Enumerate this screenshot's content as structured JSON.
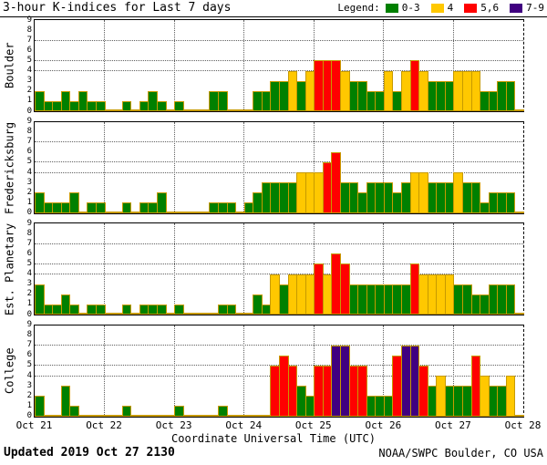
{
  "title": "3-hour K-indices for Last 7 days",
  "legend": {
    "label": "Legend:",
    "items": [
      {
        "label": "0-3",
        "color": "#008000"
      },
      {
        "label": "4",
        "color": "#FFC800"
      },
      {
        "label": "5,6",
        "color": "#FF0000"
      },
      {
        "label": "7-9",
        "color": "#400080"
      }
    ]
  },
  "footer": {
    "updated": "Updated 2019 Oct 27 2130",
    "source": "NOAA/SWPC Boulder, CO USA"
  },
  "colors": {
    "green": "#008000",
    "yellow": "#FFC800",
    "red": "#FF0000",
    "purple": "#400080",
    "bar_outline": "#C79A00",
    "grid": "#606060",
    "frame": "#000000"
  },
  "chart_data": {
    "type": "bar",
    "title": "3-hour K-indices for Last 7 days",
    "xlabel": "Coordinate Universal Time (UTC)",
    "x_ticks": [
      "Oct 21",
      "Oct 22",
      "Oct 23",
      "Oct 24",
      "Oct 25",
      "Oct 26",
      "Oct 27",
      "Oct 28"
    ],
    "bins_per_day": 8,
    "bin_hours": 3,
    "ylim": [
      0,
      9
    ],
    "y_ticks": [
      0,
      1,
      2,
      3,
      4,
      5,
      6,
      7,
      8,
      9
    ],
    "dotted_y_levels": [
      4,
      5,
      7
    ],
    "grid": "dotted-day-and-threshold-lines",
    "legend_position": "top-right",
    "color_scale": [
      {
        "range": "0-3",
        "color": "#008000"
      },
      {
        "range": "4",
        "color": "#FFC800"
      },
      {
        "range": "5,6",
        "color": "#FF0000"
      },
      {
        "range": "7-9",
        "color": "#400080"
      }
    ],
    "series": [
      {
        "name": "Boulder",
        "values": [
          2,
          1,
          1,
          2,
          1,
          2,
          1,
          1,
          0,
          0,
          1,
          0,
          1,
          2,
          1,
          0,
          1,
          0,
          0,
          0,
          2,
          2,
          0,
          0,
          0,
          2,
          2,
          3,
          3,
          4,
          3,
          4,
          5,
          5,
          5,
          4,
          3,
          3,
          2,
          2,
          4,
          2,
          4,
          5,
          4,
          3,
          3,
          3,
          4,
          4,
          4,
          2,
          2,
          3,
          3,
          0
        ]
      },
      {
        "name": "Fredericksburg",
        "values": [
          2,
          1,
          1,
          1,
          2,
          0,
          1,
          1,
          0,
          0,
          1,
          0,
          1,
          1,
          2,
          0,
          0,
          0,
          0,
          0,
          1,
          1,
          1,
          0,
          1,
          2,
          3,
          3,
          3,
          3,
          4,
          4,
          4,
          5,
          6,
          3,
          3,
          2,
          3,
          3,
          3,
          2,
          3,
          4,
          4,
          3,
          3,
          3,
          4,
          3,
          3,
          1,
          2,
          2,
          2,
          0
        ]
      },
      {
        "name": "Est. Planetary",
        "values": [
          3,
          1,
          1,
          2,
          1,
          0,
          1,
          1,
          0,
          0,
          1,
          0,
          1,
          1,
          1,
          0,
          1,
          0,
          0,
          0,
          0,
          1,
          1,
          0,
          0,
          2,
          1,
          4,
          3,
          4,
          4,
          4,
          5,
          4,
          6,
          5,
          3,
          3,
          3,
          3,
          3,
          3,
          3,
          5,
          4,
          4,
          4,
          4,
          3,
          3,
          2,
          2,
          3,
          3,
          3,
          0
        ]
      },
      {
        "name": "College",
        "values": [
          2,
          0,
          0,
          3,
          1,
          0,
          0,
          0,
          0,
          0,
          1,
          0,
          0,
          0,
          0,
          0,
          1,
          0,
          0,
          0,
          0,
          1,
          0,
          0,
          0,
          0,
          0,
          5,
          6,
          5,
          3,
          2,
          5,
          5,
          7,
          7,
          5,
          5,
          2,
          2,
          2,
          6,
          7,
          7,
          5,
          3,
          4,
          3,
          3,
          3,
          6,
          4,
          3,
          3,
          4,
          0
        ]
      }
    ]
  }
}
